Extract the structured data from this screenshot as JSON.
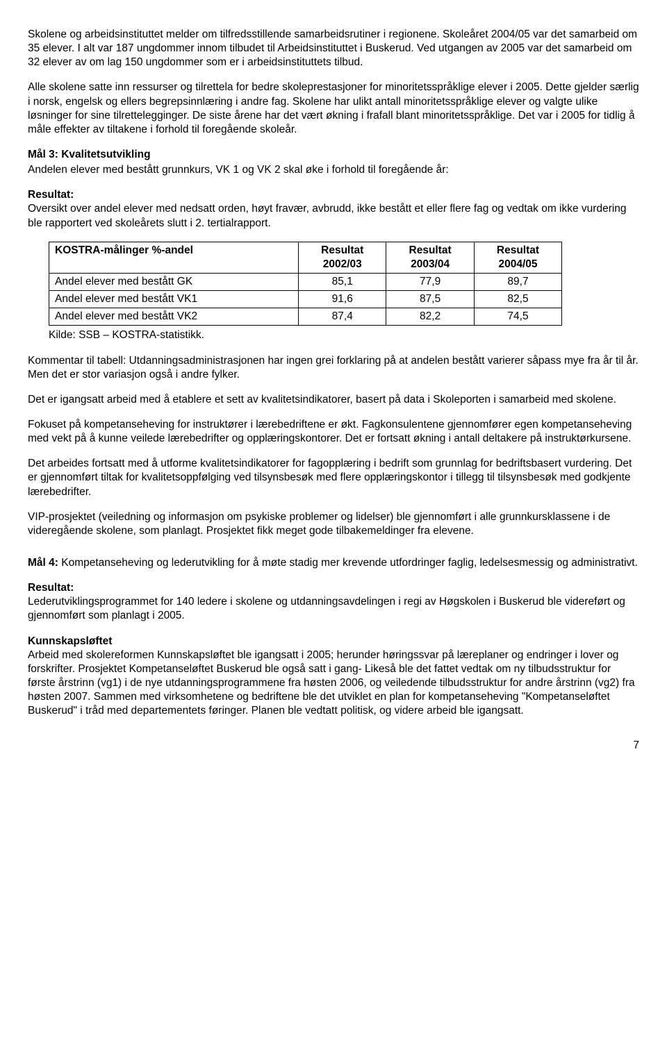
{
  "p1": "Skolene og arbeidsinstituttet melder om tilfredsstillende samarbeidsrutiner i regionene. Skoleåret 2004/05 var det samarbeid om 35 elever. I alt var 187 ungdommer innom tilbudet til Arbeidsinstituttet i Buskerud. Ved utgangen av 2005 var det samarbeid om 32 elever av om lag 150 ungdommer som er i arbeidsinstituttets tilbud.",
  "p2": "Alle skolene satte inn ressurser og tilrettela for bedre skoleprestasjoner for minoritetsspråklige elever i 2005. Dette gjelder særlig i norsk, engelsk og ellers begrepsinnlæring i andre fag. Skolene har ulikt antall minoritetsspråklige elever og valgte ulike løsninger for sine tilrettelegginger. De siste årene har det vært økning i frafall blant minoritetsspråklige. Det var i 2005 for tidlig å måle effekter av tiltakene i forhold til foregående skoleår.",
  "mal3_title": "Mål 3: Kvalitetsutvikling",
  "mal3_desc": "Andelen elever med bestått grunnkurs, VK 1 og VK 2 skal øke i forhold til foregående år:",
  "resultat_label": "Resultat:",
  "mal3_res": "Oversikt over andel elever med nedsatt orden, høyt fravær, avbrudd, ikke bestått et eller flere fag og vedtak om ikke vurdering ble rapportert ved skoleårets slutt i 2. tertialrapport.",
  "table": {
    "headers": [
      "KOSTRA-målinger %-andel",
      "Resultat 2002/03",
      "Resultat 2003/04",
      "Resultat 2004/05"
    ],
    "rows": [
      [
        "Andel elever med bestått GK",
        "85,1",
        "77,9",
        "89,7"
      ],
      [
        "Andel elever med bestått VK1",
        "91,6",
        "87,5",
        "82,5"
      ],
      [
        "Andel elever med bestått VK2",
        "87,4",
        "82,2",
        "74,5"
      ]
    ]
  },
  "kilde": "Kilde: SSB – KOSTRA-statistikk.",
  "p3": "Kommentar til tabell: Utdanningsadministrasjonen har ingen grei forklaring på at andelen bestått varierer såpass mye fra år til år. Men det er stor variasjon også i andre fylker.",
  "p4": "Det er igangsatt arbeid med å etablere et sett av kvalitetsindikatorer, basert på data i Skoleporten i samarbeid med skolene.",
  "p5": "Fokuset på kompetanseheving for instruktører i lærebedriftene er økt. Fagkonsulentene gjennomfører egen kompetanseheving med vekt på å kunne veilede lærebedrifter og opplæringskontorer. Det er fortsatt økning i antall deltakere på instruktørkursene.",
  "p6": "Det arbeides fortsatt med å utforme kvalitetsindikatorer for fagopplæring i bedrift som grunnlag for bedriftsbasert vurdering. Det er gjennomført tiltak for kvalitetsoppfølging ved tilsynsbesøk med flere opplæringskontor i tillegg til tilsynsbesøk med godkjente lærebedrifter.",
  "p7": "VIP-prosjektet (veiledning og informasjon om psykiske problemer og lidelser) ble gjennomført i alle grunnkursklassene i de videregående skolene, som planlagt. Prosjektet fikk meget gode tilbakemeldinger fra elevene.",
  "mal4_label": "Mål 4:",
  "mal4_text": " Kompetanseheving og lederutvikling for å møte stadig mer krevende utfordringer faglig, ledelsesmessig og administrativt.",
  "mal4_res": "Lederutviklingsprogrammet for 140 ledere i skolene og utdanningsavdelingen i regi av Høgskolen i Buskerud ble videreført og gjennomført som planlagt i 2005.",
  "kunn_title": "Kunnskapsløftet",
  "kunn_text": "Arbeid med skolereformen Kunnskapsløftet ble igangsatt i 2005; herunder høringssvar på læreplaner og endringer i lover og forskrifter. Prosjektet Kompetanseløftet Buskerud ble også satt i gang- Likeså ble det fattet vedtak om ny tilbudsstruktur for første årstrinn (vg1) i de nye utdanningsprogrammene fra høsten 2006, og veiledende tilbudsstruktur for andre årstrinn (vg2) fra høsten 2007. Sammen med virksomhetene og bedriftene ble det utviklet en plan for kompetanseheving \"Kompetanseløftet Buskerud\" i tråd med departementets føringer. Planen ble vedtatt politisk, og videre arbeid ble igangsatt.",
  "page_num": "7"
}
